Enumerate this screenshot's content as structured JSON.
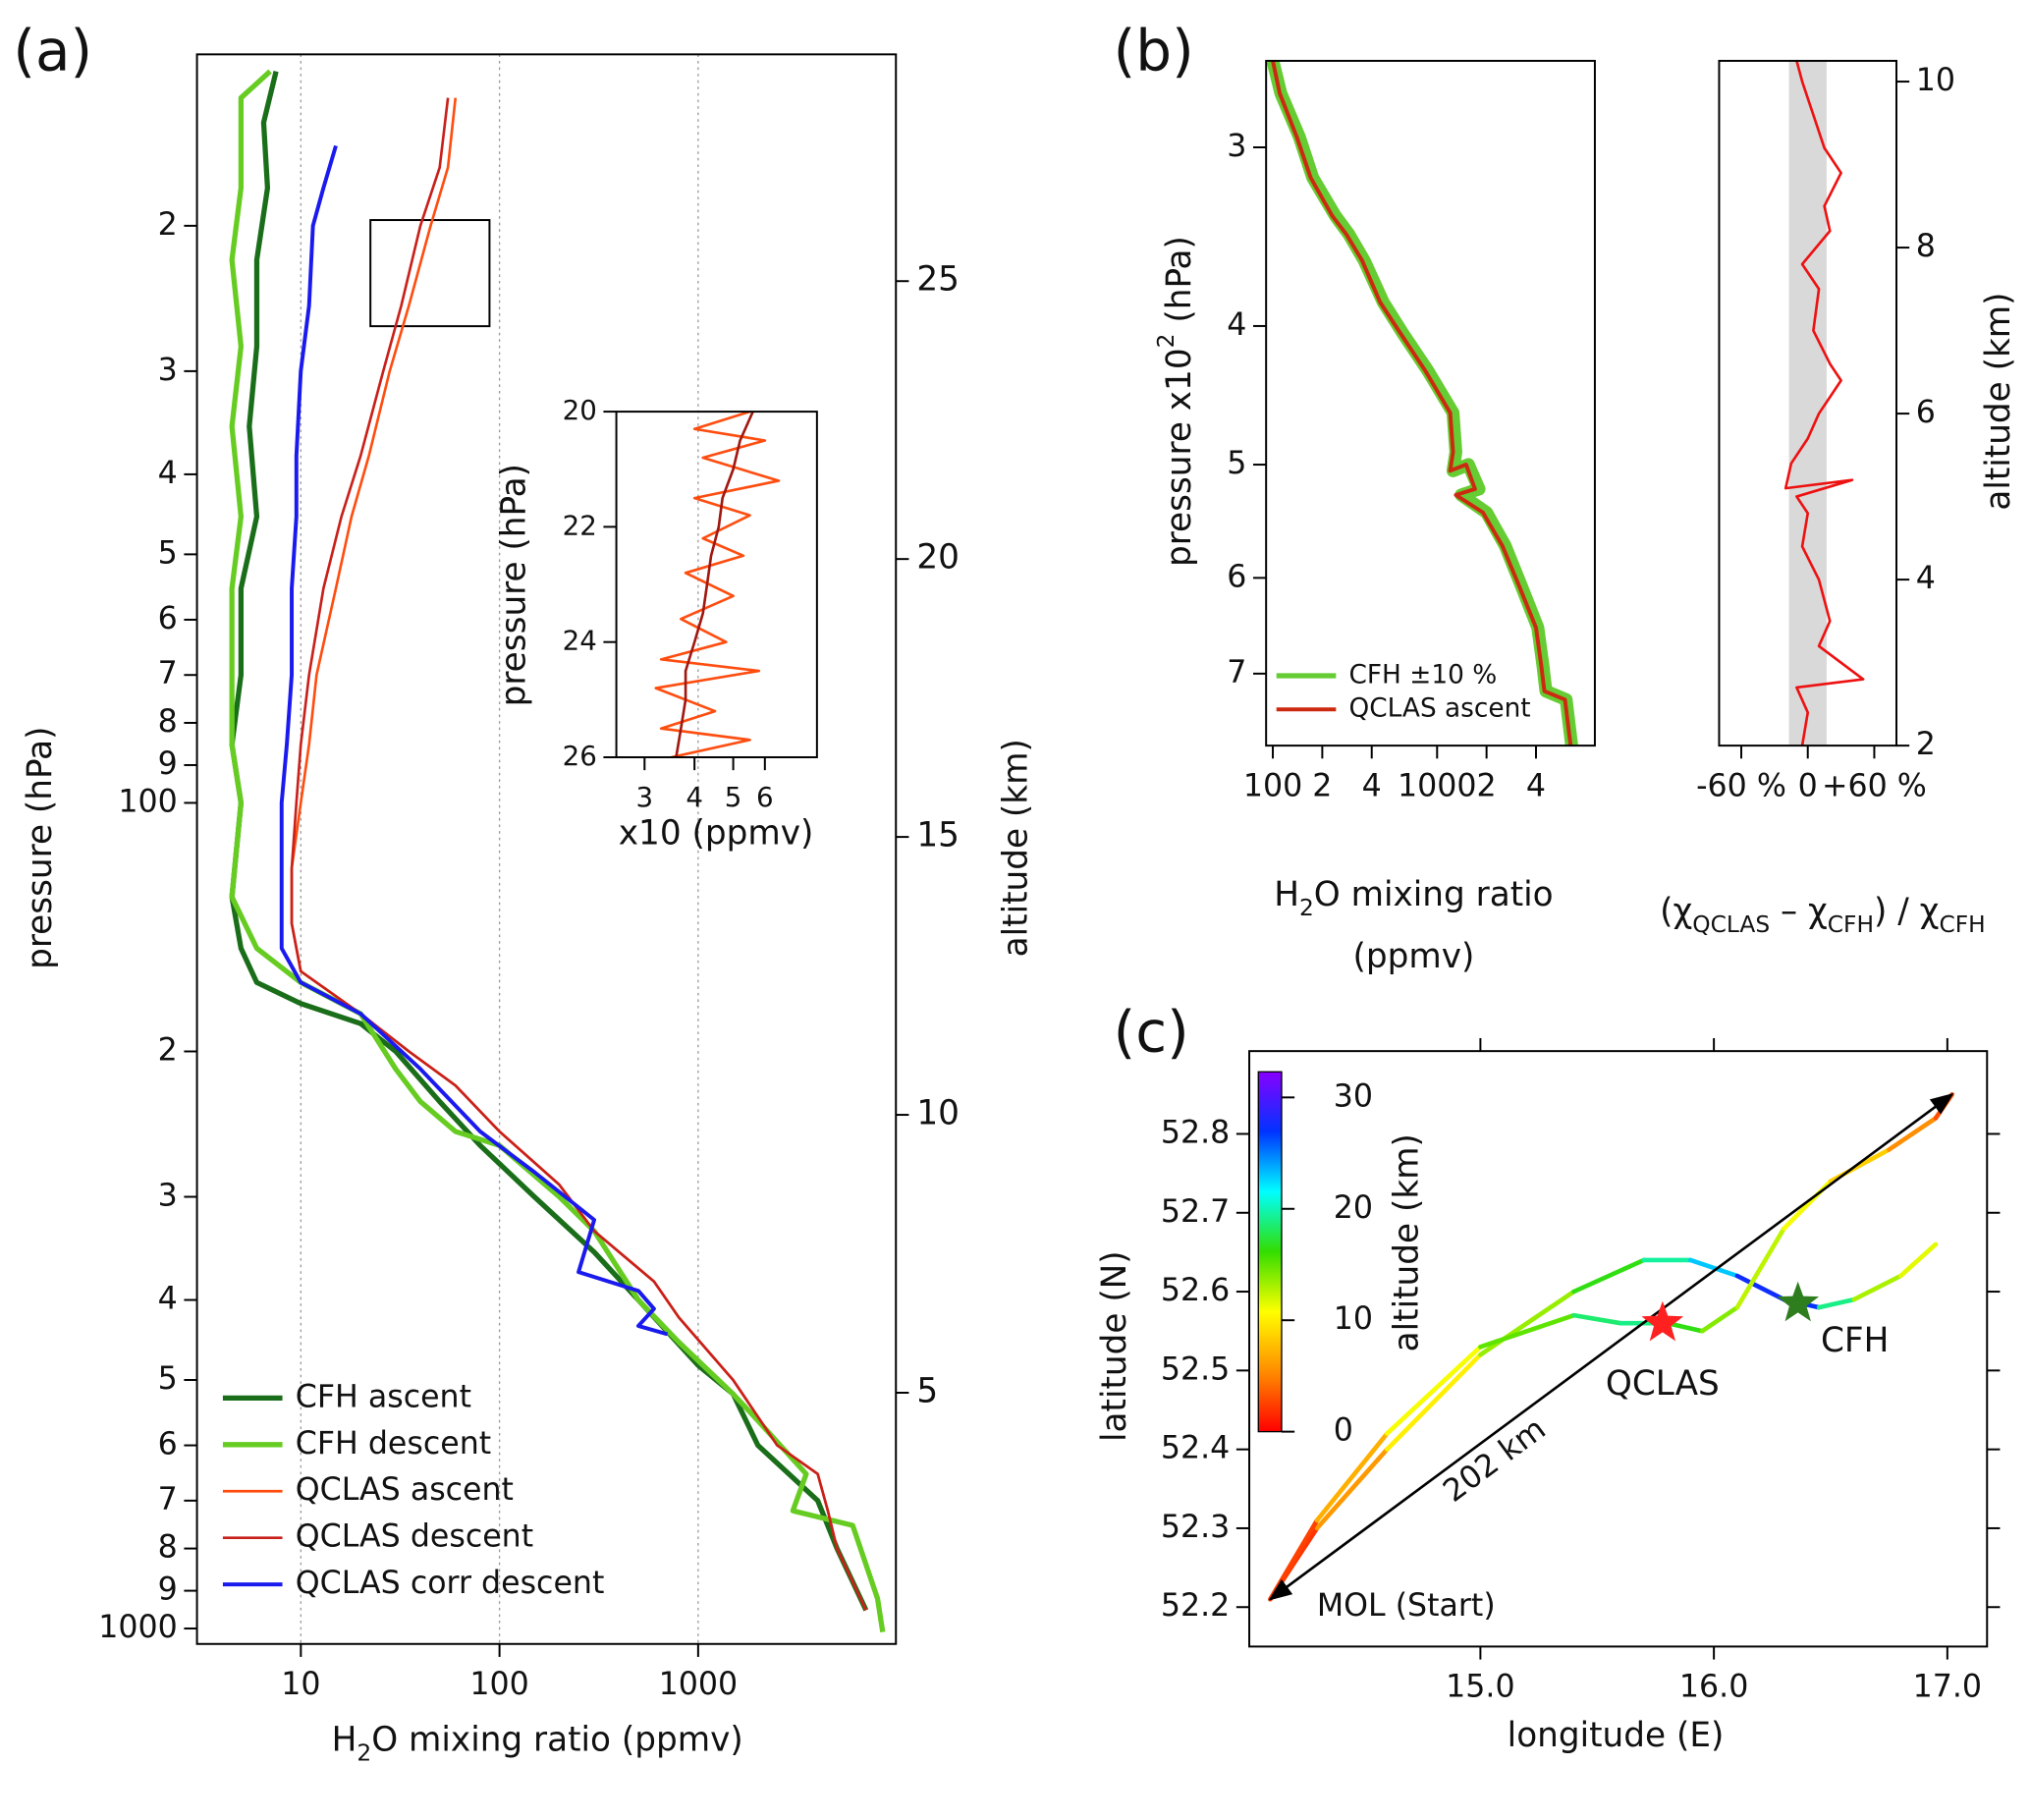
{
  "chart_data": [
    {
      "type": "line",
      "panel_label": "(a)",
      "x_label": [
        "H",
        "2",
        "O  mixing ratio (ppmv)"
      ],
      "y_label": "pressure (hPa)",
      "y2_label": "altitude (km)",
      "log_x": true,
      "log_y": true,
      "xlim": [
        3,
        9900
      ],
      "xticks": [
        10,
        100,
        1000
      ],
      "ylim": [
        1044,
        12.4
      ],
      "yticks": [
        {
          "value": 20,
          "label": "2"
        },
        {
          "value": 30,
          "label": "3"
        },
        {
          "value": 40,
          "label": "4"
        },
        {
          "value": 50,
          "label": "5"
        },
        {
          "value": 60,
          "label": "6"
        },
        {
          "value": 70,
          "label": "7"
        },
        {
          "value": 80,
          "label": "8"
        },
        {
          "value": 90,
          "label": "9"
        },
        100,
        {
          "value": 200,
          "label": "2"
        },
        {
          "value": 300,
          "label": "3"
        },
        {
          "value": 400,
          "label": "4"
        },
        {
          "value": 500,
          "label": "5"
        },
        {
          "value": 600,
          "label": "6"
        },
        {
          "value": 700,
          "label": "7"
        },
        {
          "value": 800,
          "label": "8"
        },
        {
          "value": 900,
          "label": "9"
        },
        1000
      ],
      "y2lim": [
        0.48,
        29.08
      ],
      "y2ticks": [
        5,
        10,
        15,
        20,
        25
      ],
      "grid": true,
      "legend": "lower left",
      "series": [
        {
          "name": "CFH ascent",
          "color": "#1a6e1a",
          "x": [
            7.5,
            6.5,
            6.8,
            6,
            6,
            5.5,
            6,
            5,
            5,
            4.5,
            5,
            4.5,
            5,
            6,
            10,
            20,
            30,
            50,
            80,
            150,
            300,
            500,
            1000,
            1500,
            2000,
            4000,
            5000,
            7000
          ],
          "y": [
            13,
            15,
            18,
            22,
            28,
            35,
            45,
            55,
            70,
            85,
            100,
            130,
            150,
            165,
            175,
            185,
            200,
            230,
            260,
            300,
            350,
            400,
            480,
            520,
            600,
            700,
            800,
            950
          ]
        },
        {
          "name": "CFH descent",
          "color": "#66cc22",
          "x": [
            7,
            5,
            5,
            4.5,
            5,
            4.5,
            5,
            4.5,
            4.5,
            4.5,
            5,
            4.5,
            6,
            10,
            20,
            30,
            40,
            60,
            100,
            200,
            300,
            500,
            800,
            1500,
            2000,
            3500,
            3000,
            6000,
            8000,
            8500
          ],
          "y": [
            13,
            14,
            18,
            22,
            28,
            35,
            45,
            55,
            70,
            85,
            100,
            130,
            150,
            165,
            180,
            210,
            230,
            250,
            260,
            300,
            330,
            400,
            450,
            520,
            560,
            650,
            720,
            750,
            920,
            1010
          ]
        },
        {
          "name": "QCLAS ascent",
          "color": "#ff4d10",
          "x": [
            60,
            55,
            45,
            35,
            28,
            22,
            18,
            15,
            12,
            11,
            10,
            9,
            9,
            10,
            20,
            35,
            60,
            100,
            200,
            300,
            600,
            800,
            1500,
            2500,
            4000,
            4500,
            5000,
            7000
          ],
          "y": [
            14,
            17,
            20,
            25,
            30,
            38,
            45,
            55,
            70,
            85,
            100,
            120,
            140,
            160,
            180,
            200,
            220,
            250,
            290,
            330,
            380,
            420,
            500,
            600,
            650,
            720,
            800,
            950
          ]
        },
        {
          "name": "QCLAS descent",
          "color": "#c8201a",
          "x": [
            55,
            50,
            40,
            32,
            26,
            20,
            16,
            13,
            11,
            10,
            9.5,
            9,
            9,
            10,
            20,
            35,
            60,
            100,
            200,
            300,
            600,
            800,
            1500,
            2500,
            4000,
            4500,
            5000,
            7000
          ],
          "y": [
            14,
            17,
            20,
            25,
            30,
            38,
            45,
            55,
            70,
            85,
            100,
            120,
            140,
            160,
            180,
            200,
            220,
            250,
            290,
            330,
            380,
            420,
            500,
            600,
            650,
            720,
            800,
            950
          ]
        },
        {
          "name": "QCLAS corr descent",
          "color": "#1a1aee",
          "x": [
            15,
            13,
            11.5,
            11,
            10,
            9.5,
            9.5,
            9,
            9,
            8.5,
            8,
            8,
            8,
            10,
            20,
            40,
            80,
            150,
            300,
            250,
            500,
            600,
            500,
            700
          ],
          "y": [
            16,
            18,
            20,
            25,
            30,
            38,
            45,
            55,
            70,
            85,
            100,
            130,
            150,
            165,
            180,
            210,
            250,
            280,
            320,
            370,
            390,
            410,
            430,
            440
          ]
        }
      ]
    },
    {
      "type": "line",
      "x_label": "x10 (ppmv)",
      "y_label": "pressure (hPa)",
      "log_x": true,
      "xlim": [
        2.55,
        8.1
      ],
      "xticks": [
        3,
        4,
        5,
        6
      ],
      "ylim": [
        26,
        20
      ],
      "yticks": [
        20,
        22,
        24,
        26
      ],
      "series": [
        {
          "color": "#ff4d10",
          "x": [
            5.5,
            4,
            6,
            4.2,
            6.5,
            4,
            5.5,
            4.2,
            5.3,
            3.8,
            5,
            3.7,
            4.8,
            3.3,
            5.8,
            3.2,
            4.5,
            3.3,
            5.5,
            3.5
          ],
          "y": [
            20,
            20.3,
            20.5,
            20.8,
            21.2,
            21.5,
            21.8,
            22.2,
            22.5,
            22.8,
            23.2,
            23.6,
            24,
            24.3,
            24.5,
            24.8,
            25.2,
            25.5,
            25.7,
            26
          ]
        },
        {
          "color": "#a01810",
          "x": [
            5.6,
            5.2,
            5,
            4.7,
            4.6,
            4.4,
            4.3,
            4.2,
            4,
            3.8,
            3.8,
            3.7,
            3.6
          ],
          "y": [
            20,
            20.5,
            21,
            21.5,
            22,
            22.5,
            23,
            23.5,
            24,
            24.5,
            25,
            25.5,
            26
          ]
        }
      ]
    },
    {
      "type": "line",
      "panel_label": "(b)",
      "x_label": [
        "H",
        "2",
        "O  mixing ratio"
      ],
      "x_label_2": "(ppmv)",
      "y_label": [
        "pressure  x10",
        "2",
        " (hPa)"
      ],
      "log_x": true,
      "log_y": true,
      "xlim": [
        91,
        9130
      ],
      "xticks": [
        100,
        {
          "value": 200,
          "label": "2"
        },
        {
          "value": 400,
          "label": "4"
        },
        1000,
        {
          "value": 2000,
          "label": "2"
        },
        {
          "value": 4000,
          "label": "4"
        }
      ],
      "ylim": [
        7.86,
        2.61
      ],
      "yticks": [
        3,
        4,
        5,
        6,
        7
      ],
      "legend": "lower left",
      "series": [
        {
          "name": "CFH ±10 %",
          "color": "#66cc33",
          "x": [
            100,
            112,
            145,
            175,
            240,
            290,
            360,
            470,
            620,
            880,
            1250,
            1300,
            1250,
            1550,
            1800,
            1400,
            2000,
            2600,
            3300,
            4100,
            4400,
            4600,
            6100,
            6600
          ],
          "y": [
            2.61,
            2.75,
            2.95,
            3.15,
            3.35,
            3.45,
            3.6,
            3.85,
            4.05,
            4.3,
            4.6,
            4.9,
            5.05,
            5.0,
            5.2,
            5.25,
            5.4,
            5.7,
            6.1,
            6.5,
            6.9,
            7.2,
            7.3,
            7.86
          ]
        },
        {
          "name": "QCLAS ascent",
          "color": "#cc2a10",
          "x": [
            100,
            110,
            140,
            170,
            230,
            280,
            350,
            450,
            600,
            850,
            1200,
            1250,
            1200,
            1500,
            1700,
            1300,
            1900,
            2500,
            3200,
            4000,
            4300,
            4500,
            6000,
            6500
          ],
          "y": [
            2.61,
            2.75,
            2.95,
            3.15,
            3.35,
            3.45,
            3.6,
            3.85,
            4.05,
            4.3,
            4.6,
            4.9,
            5.05,
            5.0,
            5.2,
            5.25,
            5.4,
            5.7,
            6.1,
            6.5,
            6.9,
            7.2,
            7.3,
            7.86
          ]
        }
      ]
    },
    {
      "type": "line",
      "x_label": [
        "(χ",
        "QCLAS",
        " – χ",
        "CFH",
        ") / χ",
        "CFH"
      ],
      "y_label": "altitude (km)",
      "xlim": [
        -80,
        80
      ],
      "xticks": [
        {
          "value": -60,
          "label": "-60 %"
        },
        0,
        {
          "value": 60,
          "label": "+60 %"
        }
      ],
      "ylim": [
        2,
        10.25
      ],
      "yticks": [
        2,
        4,
        6,
        8,
        10
      ],
      "shaded_range": [
        -17,
        17
      ],
      "series": [
        {
          "color": "#ee1111",
          "x": [
            -10,
            -5,
            5,
            15,
            30,
            15,
            20,
            -5,
            10,
            5,
            20,
            30,
            10,
            0,
            -15,
            -20,
            40,
            -10,
            0,
            -5,
            10,
            20,
            10,
            50,
            -10,
            0,
            -5
          ],
          "y": [
            10.25,
            10,
            9.6,
            9.2,
            8.9,
            8.5,
            8.2,
            7.8,
            7.5,
            7.0,
            6.6,
            6.4,
            6.0,
            5.7,
            5.4,
            5.1,
            5.2,
            5.0,
            4.8,
            4.4,
            4.0,
            3.5,
            3.2,
            2.8,
            2.7,
            2.4,
            2.0
          ]
        }
      ]
    },
    {
      "type": "trajectory",
      "panel_label": "(c)",
      "x_label": "longitude (E)",
      "y_label": "latitude (N)",
      "xlim": [
        14.01,
        17.17
      ],
      "xticks": [
        {
          "value": 15,
          "label": "15.0"
        },
        {
          "value": 16,
          "label": "16.0"
        },
        {
          "value": 17,
          "label": "17.0"
        }
      ],
      "ylim": [
        52.15,
        52.905
      ],
      "yticks": [
        52.2,
        52.3,
        52.4,
        52.5,
        52.6,
        52.7,
        52.8
      ],
      "colorbar": {
        "label": "altitude (km)",
        "lim": [
          0,
          32.3
        ],
        "ticks": [
          0,
          10,
          20,
          30
        ]
      },
      "colormap": [
        "#ff0000",
        "#ff8c00",
        "#ffff00",
        "#33dd00",
        "#00ffff",
        "#0033ff",
        "#8800ff"
      ],
      "series": [
        {
          "x": [
            14.1,
            14.3,
            14.6,
            15.0,
            15.4,
            15.7,
            15.9,
            16.1,
            16.3,
            16.45,
            16.6,
            16.8,
            16.95
          ],
          "y": [
            52.21,
            52.3,
            52.4,
            52.52,
            52.6,
            52.64,
            52.64,
            52.62,
            52.59,
            52.58,
            52.59,
            52.62,
            52.66
          ],
          "z": [
            0,
            4,
            8,
            12,
            15,
            18,
            21,
            25,
            30,
            24,
            14,
            12,
            11
          ]
        },
        {
          "x": [
            14.1,
            14.3,
            14.6,
            15.0,
            15.4,
            15.6,
            15.8,
            15.95,
            16.1,
            16.3,
            16.5,
            16.75,
            16.95,
            17.02
          ],
          "y": [
            52.21,
            52.31,
            52.42,
            52.53,
            52.57,
            52.56,
            52.56,
            52.55,
            52.58,
            52.68,
            52.74,
            52.78,
            52.82,
            52.85
          ],
          "z": [
            0,
            5,
            9,
            13,
            17,
            20,
            18,
            15,
            13,
            12,
            10,
            7,
            4,
            2
          ]
        }
      ],
      "markers": [
        {
          "name": "QCLAS",
          "color": "#ff2020",
          "x": 15.78,
          "y": 52.56
        },
        {
          "name": "CFH",
          "color": "#2e7d1e",
          "x": 16.36,
          "y": 52.585
        }
      ],
      "arrow": {
        "from": [
          14.1,
          52.21
        ],
        "to": [
          17.02,
          52.85
        ],
        "label": "202 km"
      },
      "start_label": "MOL (Start)"
    }
  ]
}
